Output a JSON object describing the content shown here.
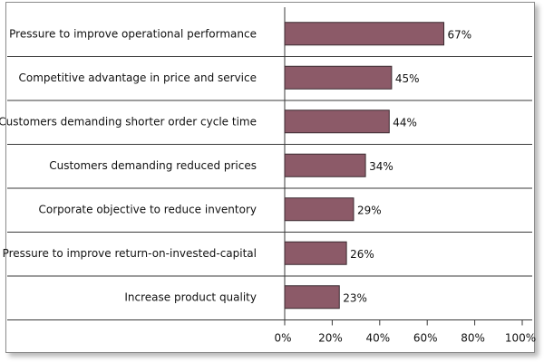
{
  "chart_data": {
    "type": "bar",
    "orientation": "horizontal",
    "categories": [
      "Pressure to improve operational performance",
      "Competitive advantage in price and service",
      "Customers demanding shorter order cycle time",
      "Customers demanding reduced prices",
      "Corporate objective to reduce inventory",
      "Pressure to improve return-on-invested-capital",
      "Increase product quality"
    ],
    "values": [
      67,
      45,
      44,
      34,
      29,
      26,
      23
    ],
    "value_labels": [
      "67%",
      "45%",
      "44%",
      "34%",
      "29%",
      "26%",
      "23%"
    ],
    "x_ticks": [
      "0%",
      "20%",
      "40%",
      "60%",
      "80%",
      "100%"
    ],
    "xlim": [
      0,
      100
    ],
    "bar_color": "#8c5a68",
    "bar_edge_color": "#3a2a30",
    "title": "",
    "xlabel": "",
    "ylabel": ""
  }
}
